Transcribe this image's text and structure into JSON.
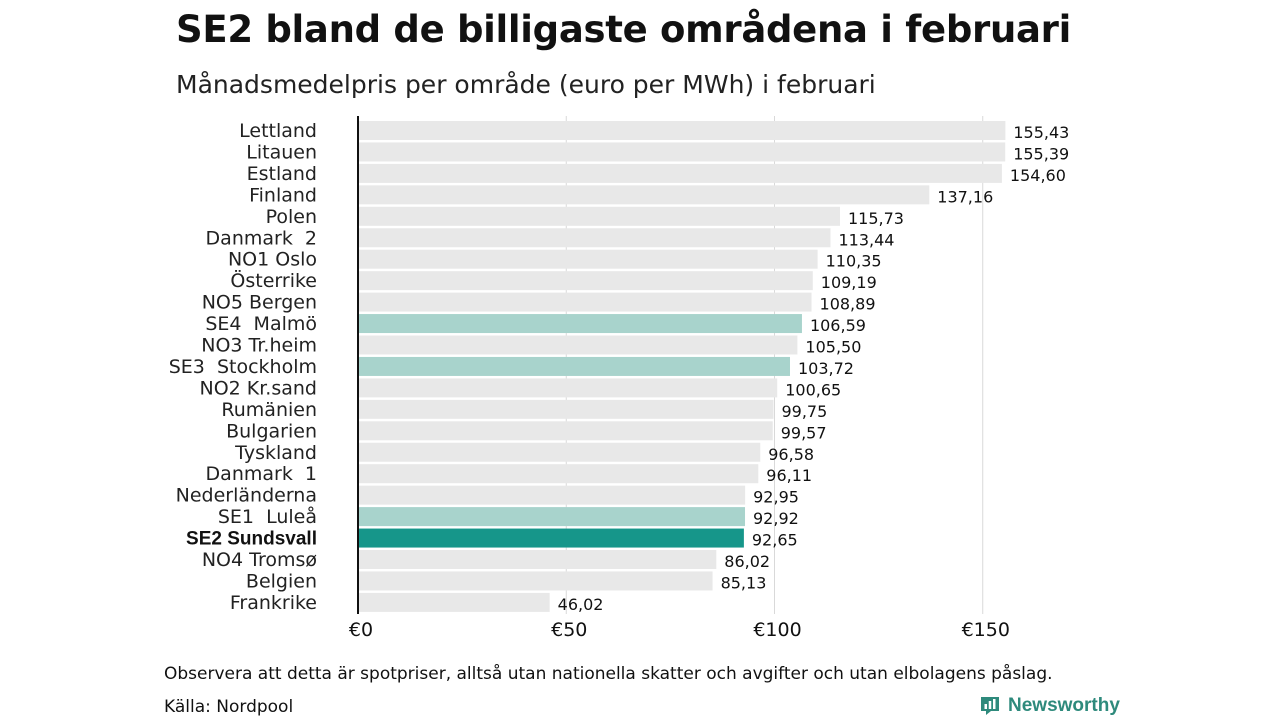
{
  "header": {
    "title": "SE2 bland de billigaste områdena i februari",
    "subtitle": "Månadsmedelpris per område (euro per MWh) i februari"
  },
  "footer": {
    "note": "Observera att detta är spotpriser, alltså utan nationella skatter och avgifter och utan elbolagens påslag.",
    "source": "Källa: Nordpool",
    "brand": "Newsworthy"
  },
  "colors": {
    "bar_default": "#e8e8e8",
    "bar_highlight": "#a8d3cc",
    "bar_focus": "#16968a",
    "axis": "#111111",
    "grid": "#d9d9d9",
    "brand": "#2e8a7c"
  },
  "chart_data": {
    "type": "bar",
    "orientation": "horizontal",
    "title": "SE2 bland de billigaste områdena i februari",
    "subtitle": "Månadsmedelpris per område (euro per MWh) i februari",
    "xlabel": "",
    "ylabel": "",
    "xlim": [
      0,
      175
    ],
    "grid": true,
    "ticks": [
      {
        "value": 0,
        "label": "€0"
      },
      {
        "value": 50,
        "label": "€50"
      },
      {
        "value": 100,
        "label": "€100"
      },
      {
        "value": 150,
        "label": "€150"
      }
    ],
    "bars": [
      {
        "category": "Lettland",
        "value": 155.43,
        "label": "155,43",
        "style": "default"
      },
      {
        "category": "Litauen",
        "value": 155.39,
        "label": "155,39",
        "style": "default"
      },
      {
        "category": "Estland",
        "value": 154.6,
        "label": "154,60",
        "style": "default"
      },
      {
        "category": "Finland",
        "value": 137.16,
        "label": "137,16",
        "style": "default"
      },
      {
        "category": "Polen",
        "value": 115.73,
        "label": "115,73",
        "style": "default"
      },
      {
        "category": "Danmark  2",
        "value": 113.44,
        "label": "113,44",
        "style": "default"
      },
      {
        "category": "NO1 Oslo",
        "value": 110.35,
        "label": "110,35",
        "style": "default"
      },
      {
        "category": "Österrike",
        "value": 109.19,
        "label": "109,19",
        "style": "default"
      },
      {
        "category": "NO5 Bergen",
        "value": 108.89,
        "label": "108,89",
        "style": "default"
      },
      {
        "category": "SE4  Malmö",
        "value": 106.59,
        "label": "106,59",
        "style": "highlight"
      },
      {
        "category": "NO3 Tr.heim",
        "value": 105.5,
        "label": "105,50",
        "style": "default"
      },
      {
        "category": "SE3  Stockholm",
        "value": 103.72,
        "label": "103,72",
        "style": "highlight"
      },
      {
        "category": "NO2 Kr.sand",
        "value": 100.65,
        "label": "100,65",
        "style": "default"
      },
      {
        "category": "Rumänien",
        "value": 99.75,
        "label": "99,75",
        "style": "default"
      },
      {
        "category": "Bulgarien",
        "value": 99.57,
        "label": "99,57",
        "style": "default"
      },
      {
        "category": "Tyskland",
        "value": 96.58,
        "label": "96,58",
        "style": "default"
      },
      {
        "category": "Danmark  1",
        "value": 96.11,
        "label": "96,11",
        "style": "default"
      },
      {
        "category": "Nederländerna",
        "value": 92.95,
        "label": "92,95",
        "style": "default"
      },
      {
        "category": "SE1  Luleå",
        "value": 92.92,
        "label": "92,92",
        "style": "highlight"
      },
      {
        "category": "SE2 Sundsvall",
        "value": 92.65,
        "label": "92,65",
        "style": "focus"
      },
      {
        "category": "NO4 Tromsø",
        "value": 86.02,
        "label": "86,02",
        "style": "default"
      },
      {
        "category": "Belgien",
        "value": 85.13,
        "label": "85,13",
        "style": "default"
      },
      {
        "category": "Frankrike",
        "value": 46.02,
        "label": "46,02",
        "style": "default"
      }
    ]
  }
}
